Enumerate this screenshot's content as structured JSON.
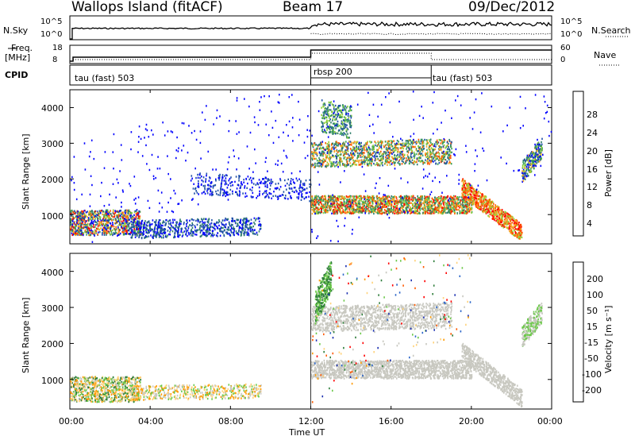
{
  "header": {
    "title": "Wallops Island (fitACF)",
    "beam": "Beam 17",
    "date": "09/Dec/2012"
  },
  "nsky_panel": {
    "left_label": "N.Sky",
    "right_label": "N.Search",
    "left_ticks": [
      "10^5",
      "10^0"
    ],
    "right_ticks": [
      "10^5",
      "10^0"
    ]
  },
  "freq_panel": {
    "left_label_1": "Freq.",
    "left_label_2": "[MHz]",
    "left_ticks": [
      "18",
      "8"
    ],
    "right_label": "Nave",
    "right_ticks": [
      "60",
      "0"
    ]
  },
  "cpid_panel": {
    "label": "CPID",
    "modes": [
      {
        "name": "tau (fast) 503",
        "start_hour": 0
      },
      {
        "name": "rbsp 200",
        "start_hour": 12
      },
      {
        "name": "tau (fast) 503",
        "start_hour": 18
      }
    ]
  },
  "chart_data": [
    {
      "type": "heatmap",
      "title": "Power",
      "ylabel": "Slant Range [km]",
      "xlabel": "Time UT",
      "xlim_hours": [
        0,
        24
      ],
      "ylim": [
        180,
        4500
      ],
      "yticks": [
        "1000",
        "2000",
        "3000",
        "4000"
      ],
      "colorbar_label": "Power [dB]",
      "colorbar_ticks": [
        "4",
        "8",
        "12",
        "16",
        "20",
        "24",
        "28"
      ],
      "colors": [
        "#0000ff",
        "#1f4fa8",
        "#2e7d6b",
        "#3aa05a",
        "#8fd13a",
        "#f5a623",
        "#ff5a00",
        "#ff0000"
      ]
    },
    {
      "type": "heatmap",
      "title": "Velocity",
      "ylabel": "Slant Range [km]",
      "xlabel": "Time UT",
      "xlim_hours": [
        0,
        24
      ],
      "ylim": [
        180,
        4500
      ],
      "yticks": [
        "1000",
        "2000",
        "3000",
        "4000"
      ],
      "colorbar_label": "Velocity [m s⁻¹]",
      "colorbar_ticks": [
        "200",
        "100",
        "50",
        "15",
        "-15",
        "-50",
        "-100",
        "-200"
      ],
      "colors": [
        "#1a2fb0",
        "#2a64c8",
        "#2e7d3a",
        "#6cc94a",
        "#c8c8c0",
        "#ffd27a",
        "#ff9a00",
        "#ff5a00",
        "#ff0000"
      ]
    }
  ],
  "xaxis": {
    "ticks": [
      "00:00",
      "04:00",
      "08:00",
      "12:00",
      "16:00",
      "20:00",
      "00:00"
    ],
    "label": "Time UT"
  }
}
